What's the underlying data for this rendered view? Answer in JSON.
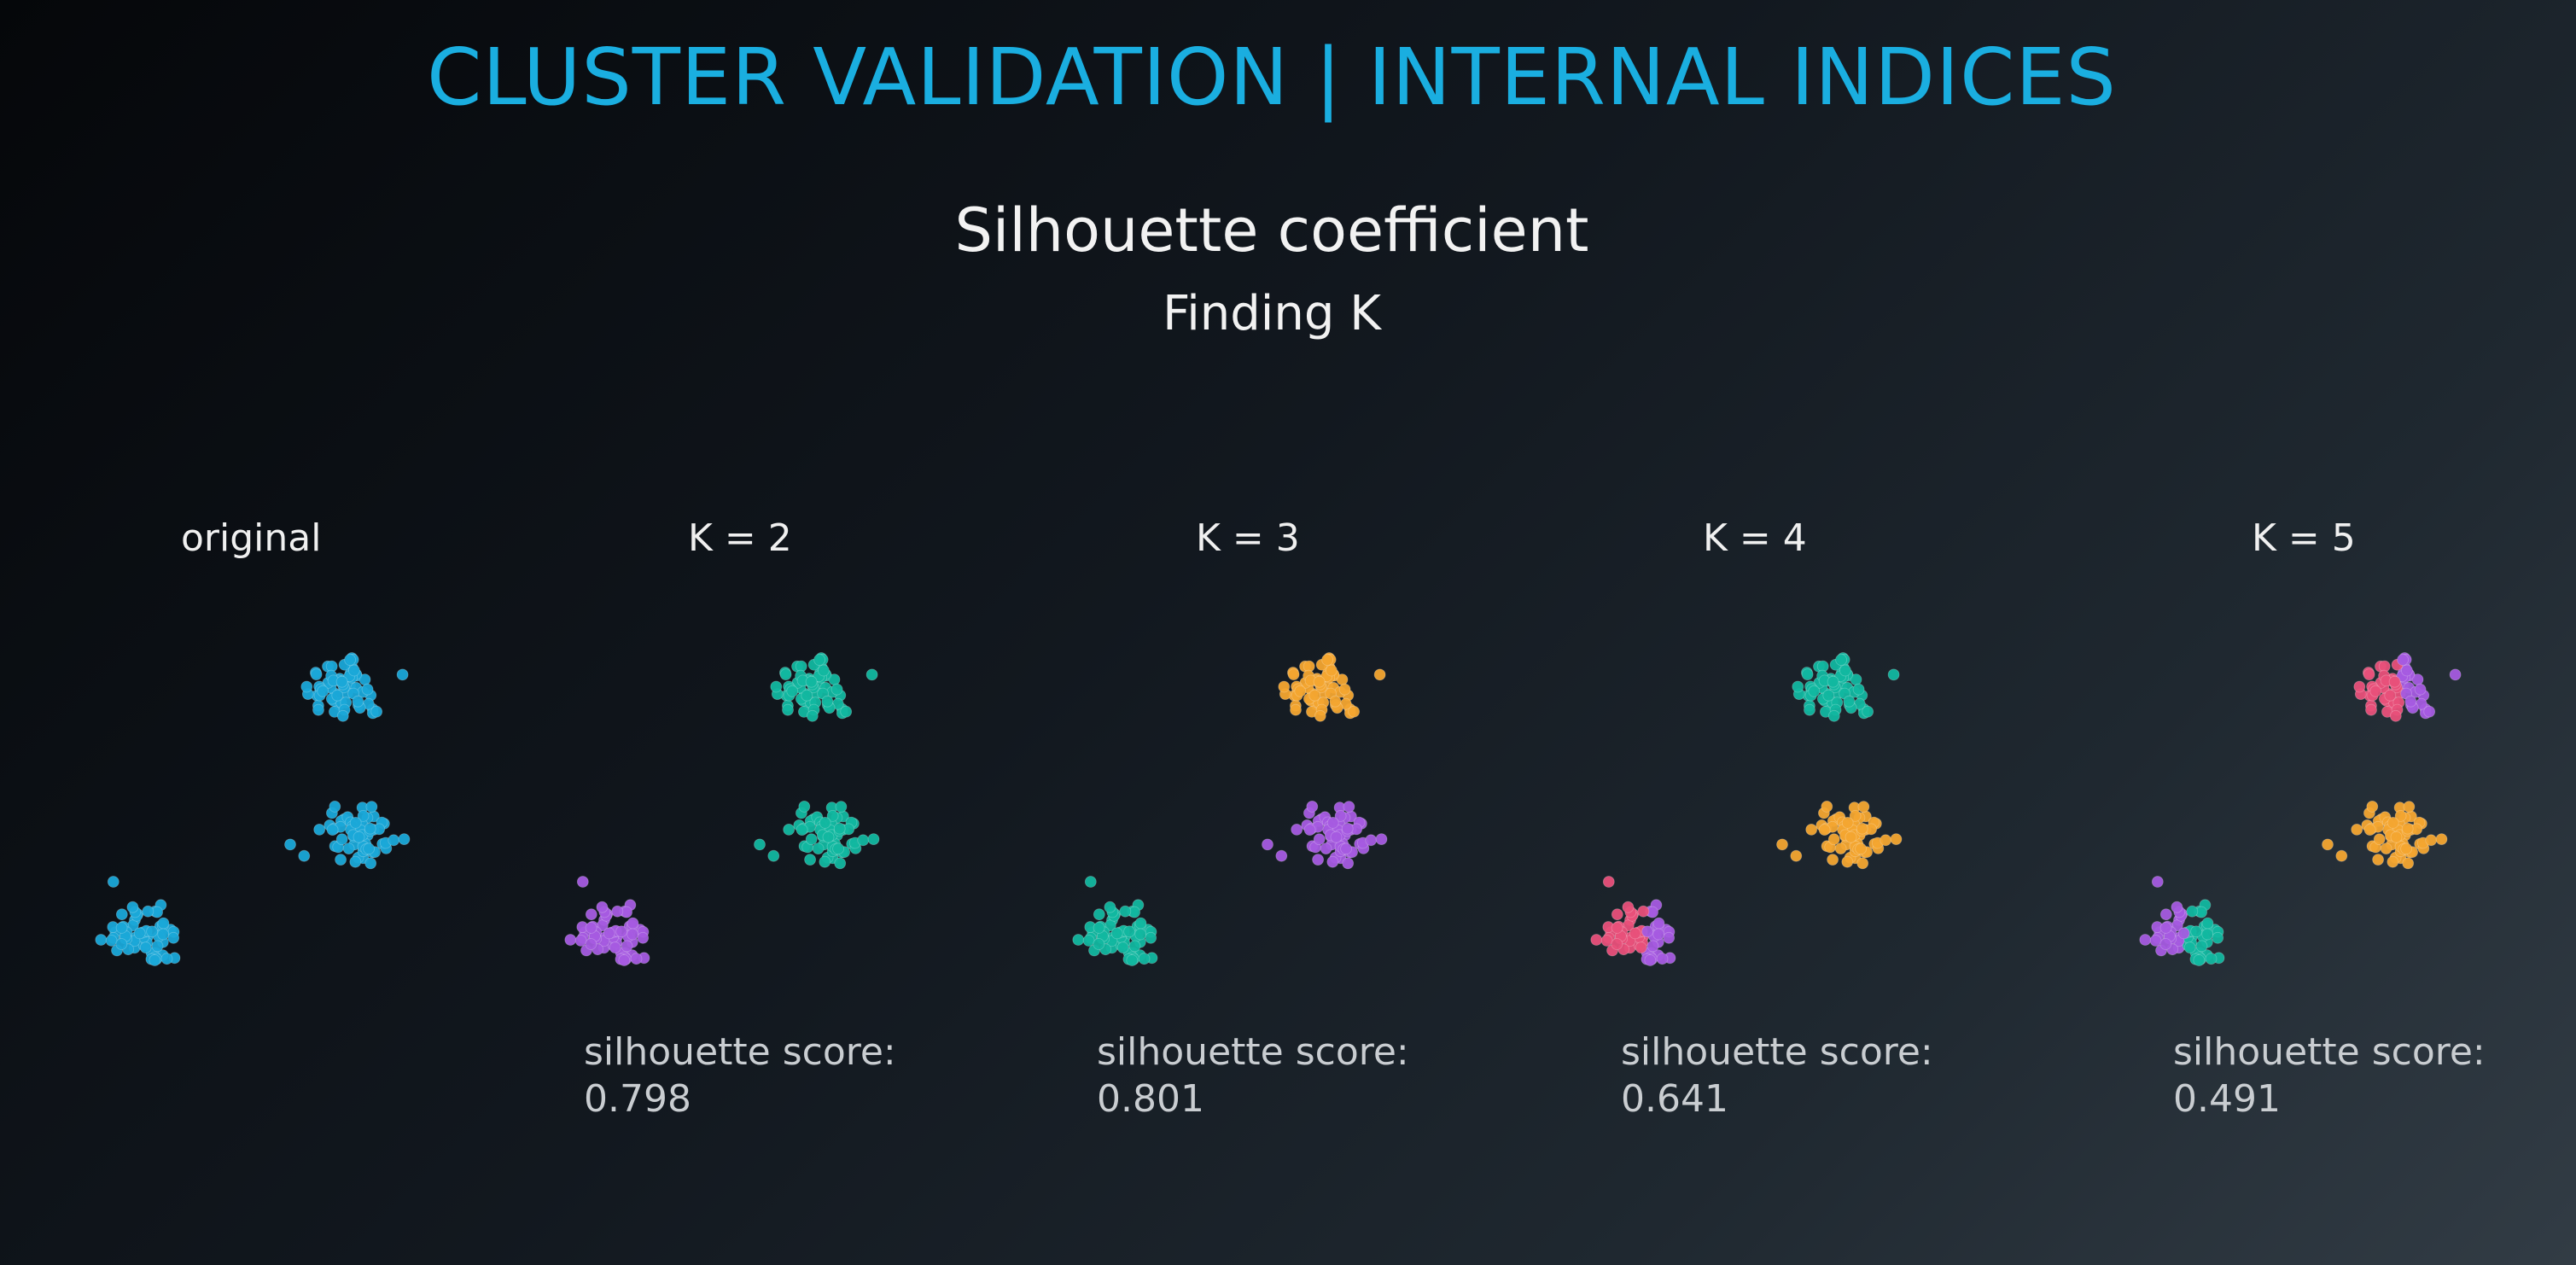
{
  "header": {
    "title": "CLUSTER VALIDATION | INTERNAL INDICES",
    "subtitle": "Silhouette coefficient",
    "subsubtitle": "Finding K"
  },
  "colors": {
    "blue": "#1aa8d8",
    "teal": "#12b7a0",
    "purple": "#a55be0",
    "orange": "#f3a530",
    "pink": "#e8507a"
  },
  "panels": [
    {
      "label": "original",
      "score_label": "",
      "score_value": "",
      "cluster_colors": [
        "blue",
        "blue",
        "blue"
      ]
    },
    {
      "label": "K = 2",
      "score_label": "silhouette score:",
      "score_value": "0.798",
      "cluster_colors": [
        "teal",
        "teal",
        "purple"
      ]
    },
    {
      "label": "K = 3",
      "score_label": "silhouette score:",
      "score_value": "0.801",
      "cluster_colors": [
        "orange",
        "purple",
        "teal"
      ]
    },
    {
      "label": "K = 4",
      "score_label": "silhouette score:",
      "score_value": "0.641",
      "cluster_colors": [
        "teal",
        "orange",
        "split-pink-purple"
      ]
    },
    {
      "label": "K = 5",
      "score_label": "silhouette score:",
      "score_value": "0.491",
      "cluster_colors": [
        "split-pink-purple",
        "orange",
        "split-purple-teal"
      ]
    }
  ]
}
